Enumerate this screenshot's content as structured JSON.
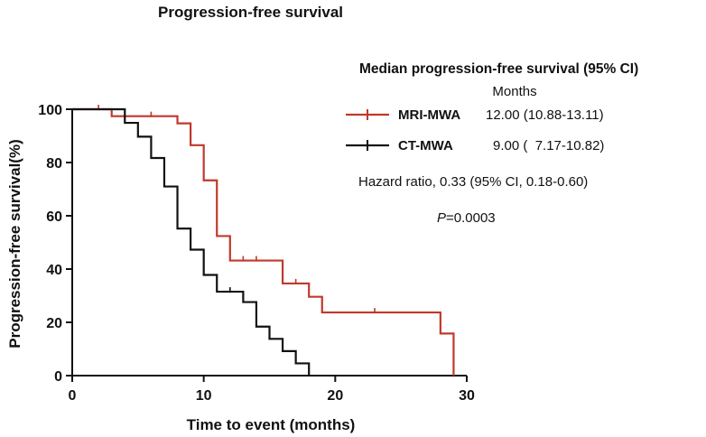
{
  "chart_data": {
    "type": "line",
    "step": true,
    "title": "Progression-free survival",
    "xlabel": "Time to event (months)",
    "ylabel": "Progression-free survival(%)",
    "xlim": [
      0,
      30
    ],
    "ylim": [
      0,
      100
    ],
    "xticks": [
      0,
      10,
      20,
      30
    ],
    "yticks": [
      0,
      20,
      40,
      60,
      80,
      100
    ],
    "grid": false,
    "series": [
      {
        "name": "MRI-MWA",
        "color": "#c0392b",
        "median": "12.00 (10.88-13.11)",
        "steps": [
          [
            0,
            100
          ],
          [
            3,
            97.4
          ],
          [
            8,
            94.7
          ],
          [
            9,
            86.5
          ],
          [
            10,
            73.3
          ],
          [
            11,
            52.4
          ],
          [
            12,
            43.2
          ],
          [
            16,
            34.6
          ],
          [
            18,
            29.6
          ],
          [
            19,
            23.7
          ],
          [
            28,
            15.8
          ],
          [
            29,
            0
          ]
        ],
        "censors": [
          [
            2,
            100
          ],
          [
            6,
            97.4
          ],
          [
            13,
            43.2
          ],
          [
            14,
            43.2
          ],
          [
            17,
            34.6
          ],
          [
            23,
            23.7
          ]
        ]
      },
      {
        "name": "CT-MWA",
        "color": "#111111",
        "median": "9.00 (  7.17-10.82)",
        "steps": [
          [
            0,
            100
          ],
          [
            4,
            94.9
          ],
          [
            5,
            89.7
          ],
          [
            6,
            81.7
          ],
          [
            7,
            71
          ],
          [
            8,
            55.2
          ],
          [
            9,
            47.3
          ],
          [
            10,
            37.8
          ],
          [
            11,
            31.5
          ],
          [
            13,
            27.6
          ],
          [
            14,
            18.4
          ],
          [
            15,
            13.8
          ],
          [
            16,
            9.2
          ],
          [
            17,
            4.6
          ],
          [
            18,
            0
          ]
        ],
        "censors": [
          [
            12,
            31.5
          ]
        ]
      }
    ],
    "legend": {
      "heading": "Median progression-free survival (95% CI)",
      "unit": "Months",
      "placement": "top-right"
    },
    "annotations": {
      "hazard_ratio": "Hazard ratio, 0.33 (95% CI, 0.18-0.60)",
      "p_label": "P",
      "p_value": "=0.0003"
    }
  }
}
